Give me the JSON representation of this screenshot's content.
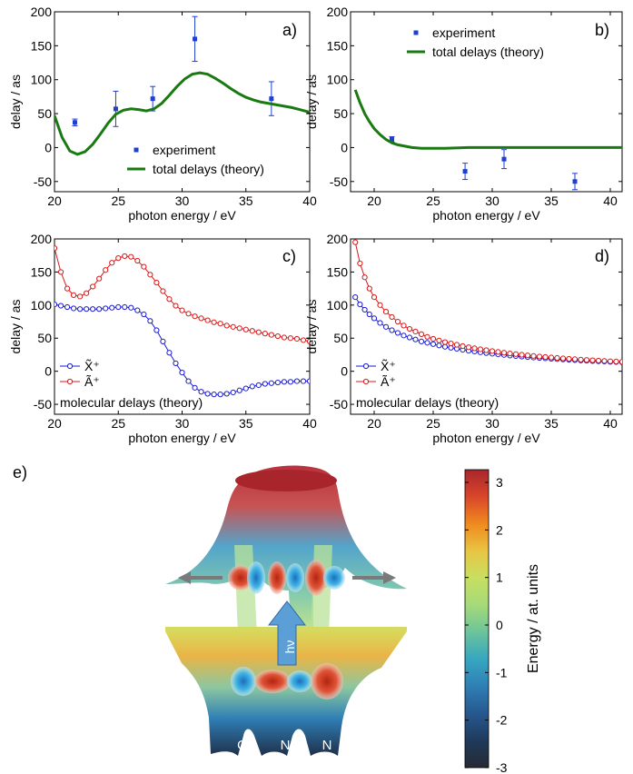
{
  "panel_e_label": "e)",
  "colorbar": {
    "label": "Energy / at. units",
    "ticks": [
      "3",
      "2",
      "1",
      "0",
      "-1",
      "-2",
      "-3"
    ],
    "colors": [
      "#a8262b",
      "#d9462a",
      "#f08a1e",
      "#e9c544",
      "#c7df61",
      "#a5da79",
      "#6cc49b",
      "#36a6c1",
      "#2f7fb5",
      "#26588f",
      "#1f3a5c",
      "#262a33"
    ]
  },
  "illustration": {
    "photon_label": "hν",
    "atoms": [
      "O",
      "N",
      "N"
    ]
  },
  "chart_data": [
    {
      "id": "a",
      "type": "scatter+line",
      "panel_label": "a)",
      "xlabel": "photon energy / eV",
      "ylabel": "delay / as",
      "xlim": [
        20,
        40
      ],
      "ylim": [
        -65,
        200
      ],
      "xticks": [
        20,
        25,
        30,
        35,
        40
      ],
      "yticks": [
        -50,
        0,
        50,
        100,
        150,
        200
      ],
      "legend_position": "lower-right",
      "series": [
        {
          "name": "experiment",
          "kind": "errorbar",
          "color": "#1f3fcf",
          "x": [
            21.6,
            24.8,
            27.7,
            31.0,
            37.0
          ],
          "y": [
            37,
            57,
            72,
            160,
            72
          ],
          "err": [
            5,
            26,
            18,
            33,
            25
          ]
        },
        {
          "name": "total delays (theory)",
          "kind": "line",
          "color": "#1a7a12",
          "x": [
            20,
            20.6,
            21.2,
            21.8,
            22.4,
            23.0,
            23.6,
            24.2,
            24.8,
            25.4,
            26.0,
            26.6,
            27.2,
            27.8,
            28.4,
            29.0,
            29.6,
            30.2,
            30.8,
            31.4,
            32.0,
            32.6,
            33.2,
            33.8,
            34.4,
            35.0,
            35.6,
            36.2,
            36.8,
            37.4,
            38.0,
            38.6,
            39.2,
            40.0
          ],
          "y": [
            47,
            15,
            -5,
            -10,
            -6,
            5,
            20,
            36,
            49,
            55,
            57,
            56,
            54,
            57,
            65,
            77,
            90,
            101,
            108,
            110,
            108,
            102,
            95,
            87,
            80,
            74,
            70,
            67,
            65,
            63,
            61,
            59,
            56,
            52
          ]
        }
      ]
    },
    {
      "id": "b",
      "type": "scatter+line",
      "panel_label": "b)",
      "xlabel": "photon energy / eV",
      "ylabel": "delay / as",
      "xlim": [
        18,
        41
      ],
      "ylim": [
        -65,
        200
      ],
      "xticks": [
        20,
        25,
        30,
        35,
        40
      ],
      "yticks": [
        -50,
        0,
        50,
        100,
        150,
        200
      ],
      "legend_position": "top-right",
      "series": [
        {
          "name": "experiment",
          "kind": "errorbar",
          "color": "#1f3fcf",
          "x": [
            21.5,
            27.7,
            31.0,
            37.0
          ],
          "y": [
            12,
            -35,
            -17,
            -50
          ],
          "err": [
            4,
            12,
            14,
            12
          ]
        },
        {
          "name": "total delays (theory)",
          "kind": "line",
          "color": "#1a7a12",
          "x": [
            18.4,
            18.8,
            19.2,
            19.6,
            20.0,
            20.5,
            21.0,
            21.5,
            22.0,
            22.6,
            23.2,
            24.0,
            25.0,
            26.0,
            28.0,
            30.0,
            33.0,
            36.0,
            41.0
          ],
          "y": [
            85,
            66,
            50,
            38,
            28,
            19,
            12,
            7,
            4,
            2,
            0,
            -1,
            -1,
            -1,
            0,
            0,
            0,
            0,
            0
          ]
        }
      ]
    },
    {
      "id": "c",
      "type": "line",
      "panel_label": "c)",
      "xlabel": "photon energy / eV",
      "ylabel": "delay / as",
      "xlim": [
        20,
        40
      ],
      "ylim": [
        -65,
        200
      ],
      "xticks": [
        20,
        25,
        30,
        35,
        40
      ],
      "yticks": [
        -50,
        0,
        50,
        100,
        150,
        200
      ],
      "legend_position": "lower-left",
      "annotation": "molecular delays (theory)",
      "series": [
        {
          "name": "X̃⁺",
          "color": "#1a1ad6",
          "x": [
            20,
            20.5,
            21,
            21.5,
            22,
            22.5,
            23,
            23.5,
            24,
            24.5,
            25,
            25.5,
            26,
            26.5,
            27,
            27.5,
            28,
            28.5,
            29,
            29.5,
            30,
            30.5,
            31,
            31.5,
            32,
            32.5,
            33,
            33.5,
            34,
            34.5,
            35,
            35.5,
            36,
            36.5,
            37,
            37.5,
            38,
            38.5,
            39,
            39.5,
            40
          ],
          "y": [
            101,
            99,
            97,
            95,
            94,
            94,
            94,
            94,
            95,
            96,
            97,
            97,
            96,
            92,
            86,
            76,
            62,
            45,
            28,
            12,
            -2,
            -15,
            -25,
            -31,
            -34,
            -35,
            -35,
            -34,
            -32,
            -29,
            -26,
            -23,
            -21,
            -19,
            -18,
            -17,
            -16,
            -16,
            -15,
            -15,
            -15
          ]
        },
        {
          "name": "Ã⁺",
          "color": "#d81818",
          "x": [
            20,
            20.5,
            21,
            21.5,
            22,
            22.5,
            23,
            23.5,
            24,
            24.5,
            25,
            25.5,
            26,
            26.5,
            27,
            27.5,
            28,
            28.5,
            29,
            29.5,
            30,
            30.5,
            31,
            31.5,
            32,
            32.5,
            33,
            33.5,
            34,
            34.5,
            35,
            35.5,
            36,
            36.5,
            37,
            37.5,
            38,
            38.5,
            39,
            39.5,
            40
          ],
          "y": [
            186,
            150,
            125,
            115,
            113,
            118,
            128,
            140,
            153,
            164,
            171,
            174,
            173,
            167,
            158,
            146,
            134,
            121,
            109,
            99,
            92,
            87,
            83,
            80,
            77,
            74,
            72,
            69,
            67,
            65,
            63,
            61,
            59,
            57,
            55,
            53,
            51,
            50,
            49,
            47,
            45
          ]
        }
      ]
    },
    {
      "id": "d",
      "type": "line",
      "panel_label": "d)",
      "xlabel": "photon energy / eV",
      "ylabel": "delay / as",
      "xlim": [
        18,
        41
      ],
      "ylim": [
        -65,
        200
      ],
      "xticks": [
        20,
        25,
        30,
        35,
        40
      ],
      "yticks": [
        -50,
        0,
        50,
        100,
        150,
        200
      ],
      "legend_position": "lower-left",
      "annotation": "molecular delays (theory)",
      "series": [
        {
          "name": "X̃⁺",
          "color": "#1a1ad6",
          "x": [
            18.4,
            18.8,
            19.2,
            19.6,
            20,
            20.5,
            21,
            21.5,
            22,
            22.5,
            23,
            23.5,
            24,
            24.5,
            25,
            25.5,
            26,
            26.5,
            27,
            27.5,
            28,
            28.5,
            29,
            29.5,
            30,
            30.5,
            31,
            31.5,
            32,
            32.5,
            33,
            33.5,
            34,
            34.5,
            35,
            35.5,
            36,
            36.5,
            37,
            37.5,
            38,
            38.5,
            39,
            39.5,
            40,
            40.5,
            41
          ],
          "y": [
            112,
            101,
            93,
            86,
            80,
            73,
            67,
            62,
            58,
            54,
            51,
            48,
            45,
            43,
            41,
            39,
            37,
            35.5,
            34,
            32.5,
            31,
            29.8,
            28.6,
            27.5,
            26.5,
            25.5,
            24.6,
            23.7,
            22.9,
            22.1,
            21.4,
            20.7,
            20.1,
            19.5,
            18.9,
            18.3,
            17.8,
            17.3,
            16.8,
            16.3,
            15.9,
            15.5,
            15.1,
            14.7,
            14.3,
            14,
            13.6
          ]
        },
        {
          "name": "Ã⁺",
          "color": "#d81818",
          "x": [
            18.4,
            18.8,
            19.2,
            19.6,
            20,
            20.5,
            21,
            21.5,
            22,
            22.5,
            23,
            23.5,
            24,
            24.5,
            25,
            25.5,
            26,
            26.5,
            27,
            27.5,
            28,
            28.5,
            29,
            29.5,
            30,
            30.5,
            31,
            31.5,
            32,
            32.5,
            33,
            33.5,
            34,
            34.5,
            35,
            35.5,
            36,
            36.5,
            37,
            37.5,
            38,
            38.5,
            39,
            39.5,
            40,
            40.5,
            41
          ],
          "y": [
            195,
            163,
            142,
            125,
            112,
            100,
            90,
            82,
            75,
            69,
            64,
            60,
            56,
            52,
            49,
            46.5,
            44,
            42,
            40,
            38,
            36.3,
            34.7,
            33.2,
            31.8,
            30.5,
            29.2,
            28,
            26.9,
            25.9,
            24.9,
            24,
            23.1,
            22.3,
            21.5,
            20.8,
            20.1,
            19.4,
            18.8,
            18.2,
            17.6,
            17.1,
            16.6,
            16.1,
            15.6,
            15.1,
            14.7,
            14.3
          ]
        }
      ]
    }
  ]
}
